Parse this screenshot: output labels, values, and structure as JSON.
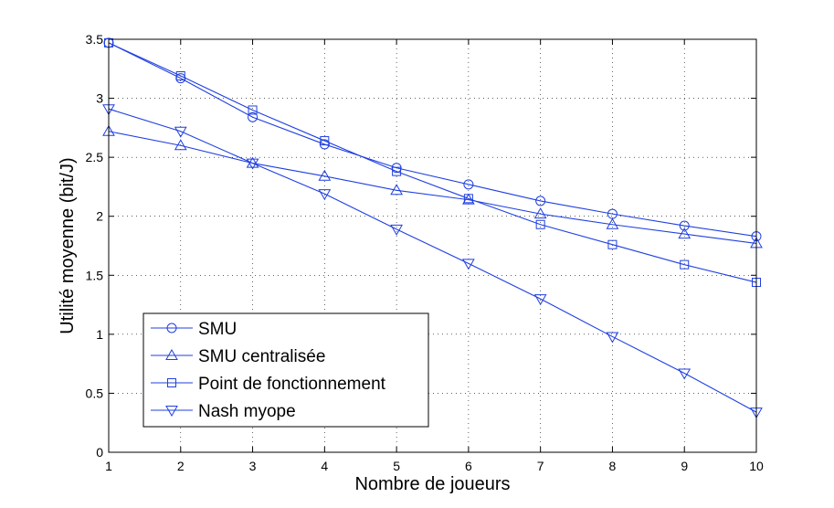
{
  "chart_data": {
    "type": "line",
    "title": "",
    "xlabel": "Nombre de joueurs",
    "ylabel": "Utilité moyenne (bit/J)",
    "xlim": [
      1,
      10
    ],
    "ylim": [
      0,
      3.5
    ],
    "xticks": [
      "1",
      "2",
      "3",
      "4",
      "5",
      "6",
      "7",
      "8",
      "9",
      "10"
    ],
    "yticks": [
      "0",
      "0.5",
      "1",
      "1.5",
      "2",
      "2.5",
      "3",
      "3.5"
    ],
    "grid": true,
    "legend_position": "bottom-left",
    "line_color": "#1f3fe0",
    "x": [
      1,
      2,
      3,
      4,
      5,
      6,
      7,
      8,
      9,
      10
    ],
    "series": [
      {
        "name": "SMU",
        "marker": "circle",
        "values": [
          3.47,
          3.17,
          2.84,
          2.61,
          2.41,
          2.27,
          2.13,
          2.02,
          1.92,
          1.83
        ]
      },
      {
        "name": "SMU centralisée",
        "marker": "triangle-up",
        "values": [
          2.72,
          2.6,
          2.45,
          2.34,
          2.22,
          2.14,
          2.02,
          1.93,
          1.85,
          1.77
        ]
      },
      {
        "name": "Point de fonctionnement",
        "marker": "square",
        "values": [
          3.47,
          3.19,
          2.9,
          2.64,
          2.38,
          2.15,
          1.93,
          1.76,
          1.59,
          1.44
        ]
      },
      {
        "name": "Nash myope",
        "marker": "triangle-down",
        "values": [
          2.91,
          2.72,
          2.45,
          2.19,
          1.89,
          1.6,
          1.3,
          0.98,
          0.67,
          0.34
        ]
      }
    ]
  }
}
